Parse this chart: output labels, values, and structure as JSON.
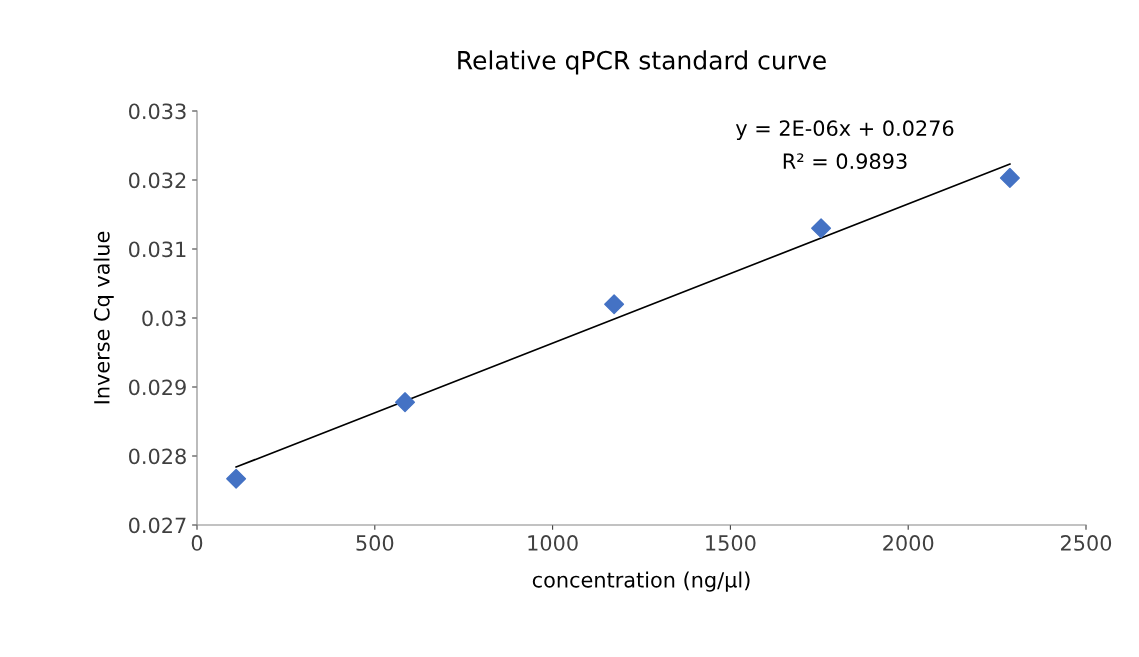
{
  "chart_data": {
    "type": "scatter",
    "title": "Relative qPCR standard curve",
    "xlabel": "concentration (ng/µl)",
    "ylabel": "Inverse Cq value",
    "series": [
      {
        "color": "#4472c4",
        "marker": "diamond",
        "x": [
          110,
          585,
          1173,
          1755,
          2286
        ],
        "values": [
          0.02767,
          0.02878,
          0.0302,
          0.0313,
          0.03203
        ]
      },
      {
        "type": "line",
        "color": "#000000",
        "marker": "none",
        "line_style": "solid",
        "x": [
          110,
          2286
        ],
        "values": [
          0.02784,
          0.03223
        ]
      }
    ],
    "xlim": [
      0,
      2500
    ],
    "xticks": [
      0,
      500,
      1000,
      1500,
      2000,
      2500
    ],
    "ylim": [
      0.027,
      0.033
    ],
    "yticks": [
      0.027,
      0.028,
      0.029,
      0.03,
      0.031,
      0.032,
      0.033
    ],
    "grid": false,
    "legend": false,
    "annotations": [
      "y = 2E-06x + 0.0276",
      "R² = 0.9893"
    ]
  }
}
